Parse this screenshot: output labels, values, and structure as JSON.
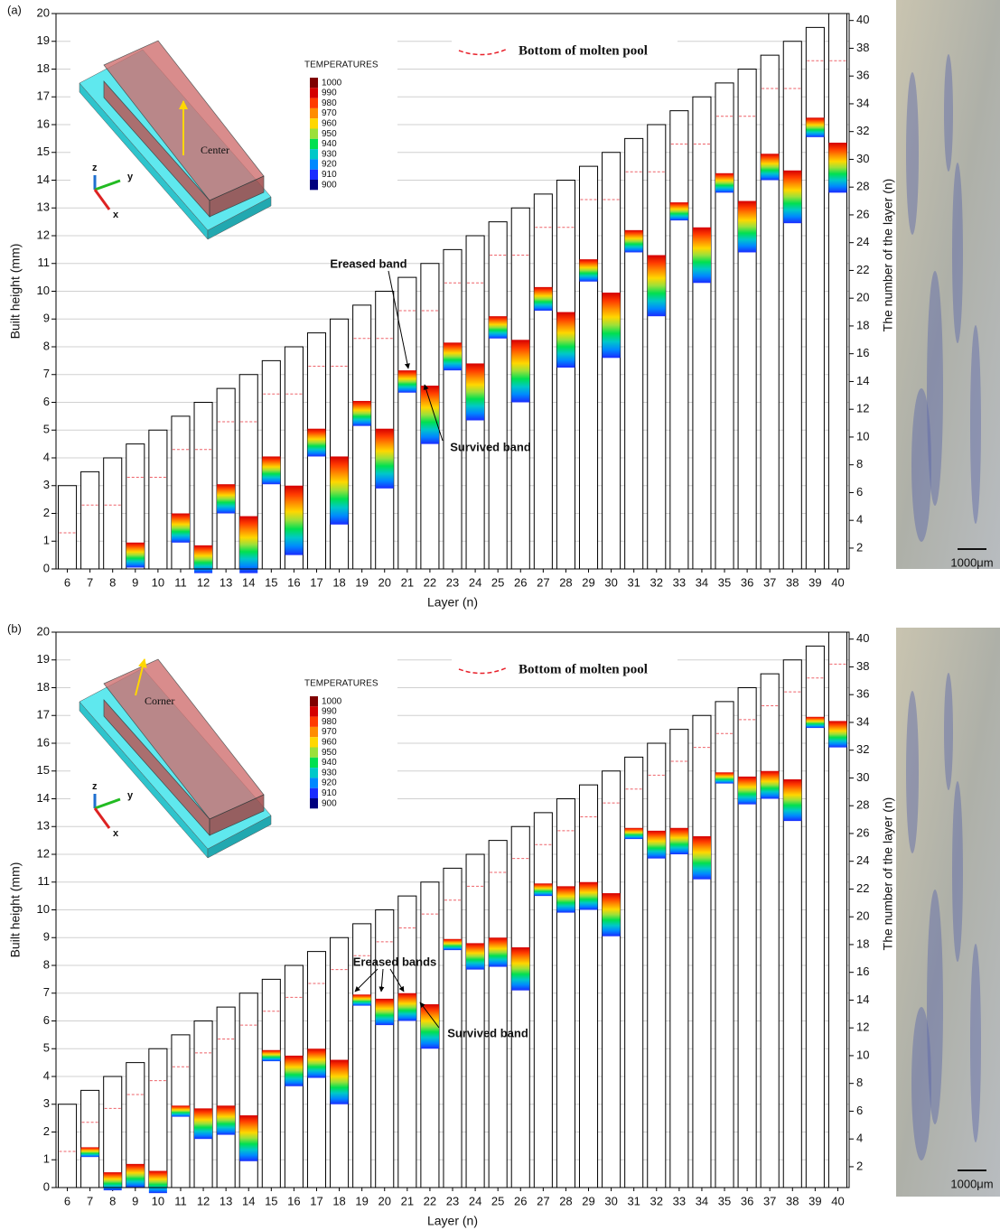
{
  "chart_data": [
    {
      "type": "bar",
      "title": "(a)",
      "x_label": "Layer (n)",
      "y_label": "Built height (mm)",
      "y2_label": "The number of the layer (n)",
      "categories": [
        "6",
        "7",
        "8",
        "9",
        "10",
        "11",
        "12",
        "13",
        "14",
        "15",
        "16",
        "17",
        "18",
        "19",
        "20",
        "21",
        "22",
        "23",
        "24",
        "25",
        "26",
        "27",
        "28",
        "29",
        "30",
        "31",
        "32",
        "33",
        "34",
        "35",
        "36",
        "37",
        "38",
        "39",
        "40"
      ],
      "values": [
        3,
        3.5,
        4,
        4.5,
        5,
        5.5,
        6,
        6.5,
        7,
        7.5,
        8,
        8.5,
        9,
        9.5,
        10,
        10.5,
        11,
        11.5,
        12,
        12.5,
        13,
        13.5,
        14,
        14.5,
        15,
        15.5,
        16,
        16.5,
        17,
        17.5,
        18,
        18.5,
        19,
        19.5,
        20
      ],
      "color": "#ffffff",
      "molten_pool_bottom": {
        "name": "Bottom of molten pool",
        "color": "#e8202a",
        "values": [
          1.3,
          2.3,
          2.3,
          3.3,
          3.3,
          4.3,
          4.3,
          5.3,
          5.3,
          6.3,
          6.3,
          7.3,
          7.3,
          8.3,
          8.3,
          9.3,
          9.3,
          10.3,
          10.3,
          11.3,
          11.3,
          12.3,
          12.3,
          13.3,
          13.3,
          14.3,
          14.3,
          15.3,
          15.3,
          16.3,
          16.3,
          17.3,
          17.3,
          18.3,
          18.3
        ]
      },
      "bands": {
        "low": [
          null,
          null,
          null,
          0.05,
          null,
          0.95,
          -0.15,
          2.0,
          -0.15,
          3.05,
          0.5,
          4.05,
          1.6,
          5.15,
          2.9,
          6.35,
          4.5,
          7.15,
          5.35,
          8.3,
          6.0,
          9.3,
          7.25,
          10.35,
          7.6,
          11.4,
          9.1,
          12.55,
          10.3,
          13.55,
          11.4,
          14.0,
          12.45,
          15.55,
          13.55
        ],
        "high": [
          null,
          null,
          null,
          0.95,
          null,
          2.0,
          0.85,
          3.05,
          1.9,
          4.05,
          3.0,
          5.05,
          4.05,
          6.05,
          5.05,
          7.15,
          6.6,
          8.15,
          7.4,
          9.1,
          8.25,
          10.15,
          9.25,
          11.15,
          9.95,
          12.2,
          11.3,
          13.2,
          12.3,
          14.25,
          13.25,
          14.95,
          14.35,
          16.25,
          15.35
        ]
      },
      "ylim": [
        0,
        20
      ],
      "yticks": [
        0,
        1,
        2,
        3,
        4,
        5,
        6,
        7,
        8,
        9,
        10,
        11,
        12,
        13,
        14,
        15,
        16,
        17,
        18,
        19,
        20
      ],
      "y2lim": [
        0.5,
        40.5
      ],
      "y2ticks": [
        2,
        4,
        6,
        8,
        10,
        12,
        14,
        16,
        18,
        20,
        22,
        24,
        26,
        28,
        30,
        32,
        34,
        36,
        38,
        40
      ],
      "grid": true,
      "colorbar": {
        "title": "TEMPERATURES",
        "values": [
          1000,
          990,
          980,
          970,
          960,
          950,
          940,
          930,
          920,
          910,
          900
        ],
        "colors": [
          "#7f0000",
          "#d40000",
          "#ff3a00",
          "#ff8c00",
          "#ffd700",
          "#9be03a",
          "#00e050",
          "#00c8c8",
          "#0088ff",
          "#1a2cff",
          "#00007f"
        ]
      },
      "annotations": [
        {
          "text": "Ereased band",
          "color": "#ff44cc"
        },
        {
          "text": "Survived band",
          "color": "#22dd22"
        }
      ],
      "inset": {
        "label": "Center",
        "axes": [
          "z",
          "y",
          "x"
        ]
      },
      "micrograph": {
        "scale_label": "1000μm"
      }
    },
    {
      "type": "bar",
      "title": "(b)",
      "x_label": "Layer (n)",
      "y_label": "Built height (mm)",
      "y2_label": "The number of the layer (n)",
      "categories": [
        "6",
        "7",
        "8",
        "9",
        "10",
        "11",
        "12",
        "13",
        "14",
        "15",
        "16",
        "17",
        "18",
        "19",
        "20",
        "21",
        "22",
        "23",
        "24",
        "25",
        "26",
        "27",
        "28",
        "29",
        "30",
        "31",
        "32",
        "33",
        "34",
        "35",
        "36",
        "37",
        "38",
        "39",
        "40"
      ],
      "values": [
        3,
        3.5,
        4,
        4.5,
        5,
        5.5,
        6,
        6.5,
        7,
        7.5,
        8,
        8.5,
        9,
        9.5,
        10,
        10.5,
        11,
        11.5,
        12,
        12.5,
        13,
        13.5,
        14,
        14.5,
        15,
        15.5,
        16,
        16.5,
        17,
        17.5,
        18,
        18.5,
        19,
        19.5,
        20
      ],
      "color": "#ffffff",
      "molten_pool_bottom": {
        "name": "Bottom of molten pool",
        "color": "#e8202a",
        "values": [
          1.3,
          2.35,
          2.85,
          3.35,
          3.85,
          4.35,
          4.85,
          5.35,
          5.85,
          6.35,
          6.85,
          7.35,
          7.85,
          8.35,
          8.85,
          9.35,
          9.85,
          10.35,
          10.85,
          11.35,
          11.85,
          12.35,
          12.85,
          13.35,
          13.85,
          14.35,
          14.85,
          15.35,
          15.85,
          16.35,
          16.85,
          17.35,
          17.85,
          18.35,
          18.85
        ]
      },
      "bands": {
        "low": [
          null,
          1.1,
          -0.1,
          0.0,
          -0.2,
          2.55,
          1.75,
          1.9,
          0.95,
          4.55,
          3.65,
          3.95,
          3.0,
          6.55,
          5.85,
          6.0,
          5.0,
          8.55,
          7.85,
          7.95,
          7.1,
          10.5,
          9.9,
          10.0,
          9.05,
          12.55,
          11.85,
          12.0,
          11.1,
          14.55,
          13.8,
          14.0,
          13.2,
          16.55,
          15.85
        ],
        "high": [
          null,
          1.45,
          0.55,
          0.85,
          0.6,
          2.95,
          2.85,
          2.95,
          2.6,
          4.95,
          4.75,
          5.0,
          4.6,
          6.95,
          6.8,
          7.0,
          6.6,
          8.95,
          8.8,
          9.0,
          8.65,
          10.95,
          10.85,
          11.0,
          10.6,
          12.95,
          12.85,
          12.95,
          12.65,
          14.95,
          14.8,
          15.0,
          14.7,
          16.95,
          16.8
        ]
      },
      "ylim": [
        0,
        20
      ],
      "yticks": [
        0,
        1,
        2,
        3,
        4,
        5,
        6,
        7,
        8,
        9,
        10,
        11,
        12,
        13,
        14,
        15,
        16,
        17,
        18,
        19,
        20
      ],
      "y2lim": [
        0.5,
        40.5
      ],
      "y2ticks": [
        2,
        4,
        6,
        8,
        10,
        12,
        14,
        16,
        18,
        20,
        22,
        24,
        26,
        28,
        30,
        32,
        34,
        36,
        38,
        40
      ],
      "grid": true,
      "colorbar": {
        "title": "TEMPERATURES",
        "values": [
          1000,
          990,
          980,
          970,
          960,
          950,
          940,
          930,
          920,
          910,
          900
        ],
        "colors": [
          "#7f0000",
          "#d40000",
          "#ff3a00",
          "#ff8c00",
          "#ffd700",
          "#9be03a",
          "#00e050",
          "#00c8c8",
          "#0088ff",
          "#1a2cff",
          "#00007f"
        ]
      },
      "annotations": [
        {
          "text": "Ereased bands",
          "color": "#ff44cc"
        },
        {
          "text": "Survived band",
          "color": "#22dd22"
        }
      ],
      "inset": {
        "label": "Corner",
        "axes": [
          "z",
          "y",
          "x"
        ]
      },
      "micrograph": {
        "scale_label": "1000μm"
      }
    }
  ]
}
